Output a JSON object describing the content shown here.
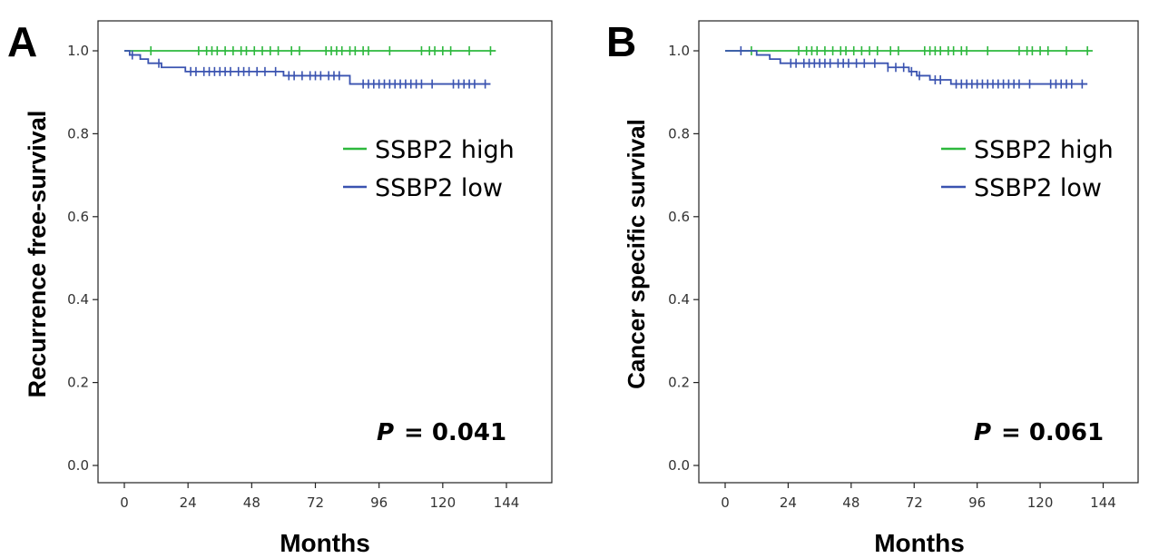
{
  "chart_data": [
    {
      "type": "line",
      "panel": "A",
      "xlabel": "Months",
      "ylabel": "Recurrence free-survival",
      "xlim": [
        0,
        144
      ],
      "ylim": [
        0,
        1.0
      ],
      "xticks": [
        "0",
        "24",
        "48",
        "72",
        "96",
        "120",
        "144"
      ],
      "yticks": [
        "0.0",
        "0.2",
        "0.4",
        "0.6",
        "0.8",
        "1.0"
      ],
      "legend_position": "top-right",
      "p_label": "P",
      "p_value": "= 0.041",
      "series": [
        {
          "name": "SSBP2 high",
          "color": "#2db83d",
          "steps": [
            [
              0,
              1.0
            ],
            [
              140,
              1.0
            ]
          ],
          "censors": [
            10,
            28,
            31,
            33,
            35,
            38,
            41,
            44,
            46,
            49,
            52,
            55,
            58,
            63,
            66,
            76,
            78,
            80,
            82,
            85,
            87,
            90,
            92,
            100,
            112,
            115,
            117,
            120,
            123,
            130,
            138
          ]
        },
        {
          "name": "SSBP2 low",
          "color": "#3a53b0",
          "steps": [
            [
              0,
              1.0
            ],
            [
              2,
              0.99
            ],
            [
              6,
              0.98
            ],
            [
              9,
              0.97
            ],
            [
              14,
              0.96
            ],
            [
              23,
              0.95
            ],
            [
              60,
              0.94
            ],
            [
              85,
              0.92
            ],
            [
              138,
              0.92
            ]
          ],
          "censors": [
            3,
            13,
            25,
            27,
            30,
            32,
            34,
            36,
            38,
            40,
            43,
            45,
            47,
            50,
            53,
            57,
            62,
            64,
            67,
            70,
            72,
            74,
            77,
            79,
            81,
            90,
            92,
            94,
            96,
            98,
            100,
            102,
            104,
            106,
            108,
            110,
            112,
            116,
            124,
            126,
            128,
            130,
            132,
            136
          ]
        }
      ]
    },
    {
      "type": "line",
      "panel": "B",
      "xlabel": "Months",
      "ylabel": "Cancer specific survival",
      "xlim": [
        0,
        144
      ],
      "ylim": [
        0,
        1.0
      ],
      "xticks": [
        "0",
        "24",
        "48",
        "72",
        "96",
        "120",
        "144"
      ],
      "yticks": [
        "0.0",
        "0.2",
        "0.4",
        "0.6",
        "0.8",
        "1.0"
      ],
      "legend_position": "top-right",
      "p_label": "P",
      "p_value": "= 0.061",
      "series": [
        {
          "name": "SSBP2 high",
          "color": "#2db83d",
          "steps": [
            [
              0,
              1.0
            ],
            [
              140,
              1.0
            ]
          ],
          "censors": [
            10,
            28,
            31,
            33,
            35,
            38,
            41,
            44,
            46,
            49,
            52,
            55,
            58,
            63,
            66,
            76,
            78,
            80,
            82,
            85,
            87,
            90,
            92,
            100,
            112,
            115,
            117,
            120,
            123,
            130,
            138
          ]
        },
        {
          "name": "SSBP2 low",
          "color": "#3a53b0",
          "steps": [
            [
              0,
              1.0
            ],
            [
              6,
              1.0
            ],
            [
              12,
              0.99
            ],
            [
              17,
              0.98
            ],
            [
              21,
              0.97
            ],
            [
              62,
              0.96
            ],
            [
              70,
              0.95
            ],
            [
              73,
              0.94
            ],
            [
              78,
              0.93
            ],
            [
              86,
              0.92
            ],
            [
              138,
              0.92
            ]
          ],
          "censors": [
            6,
            25,
            27,
            30,
            32,
            34,
            36,
            38,
            40,
            43,
            45,
            47,
            50,
            53,
            57,
            62,
            65,
            68,
            71,
            74,
            80,
            82,
            88,
            90,
            92,
            94,
            96,
            98,
            100,
            102,
            104,
            106,
            108,
            110,
            112,
            116,
            124,
            126,
            128,
            130,
            132,
            136
          ]
        }
      ]
    }
  ]
}
